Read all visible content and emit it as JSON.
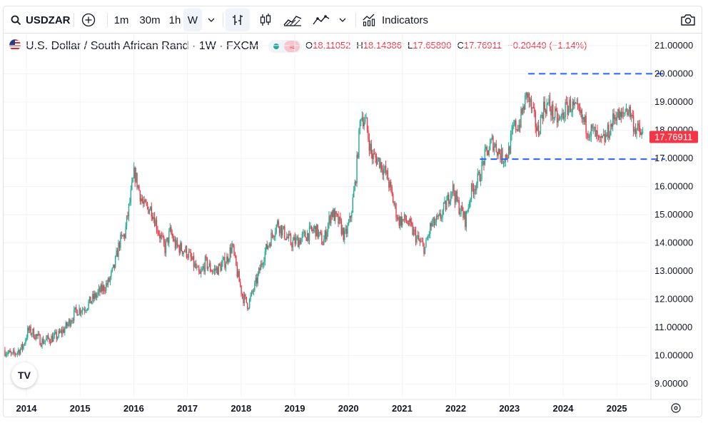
{
  "toolbar": {
    "symbol": "USDZAR",
    "intervals": [
      "1m",
      "30m",
      "1h",
      "W"
    ],
    "active_interval": "W",
    "indicators_label": "Indicators"
  },
  "legend": {
    "title": "U.S. Dollar / South African Rand · 1W · FXCM",
    "open_key": "O",
    "open": "18.11052",
    "high_key": "H",
    "high": "18.14386",
    "low_key": "L",
    "low": "17.65890",
    "close_key": "C",
    "close": "17.76911",
    "change": "−0.20449 (−1.14%)"
  },
  "price_tag": "17.76911",
  "logo_text": "TV",
  "colors": {
    "up": "#22ab94",
    "down": "#f23645",
    "line": "#2962ff",
    "tag": "#f23645"
  },
  "chart_data": {
    "type": "candlestick",
    "title": "U.S. Dollar / South African Rand · 1W · FXCM",
    "x_tick_labels": [
      "2014",
      "2015",
      "2016",
      "2017",
      "2018",
      "2019",
      "2020",
      "2021",
      "2022",
      "2023",
      "2024",
      "2025"
    ],
    "y_tick_labels": [
      "9.00000",
      "10.00000",
      "11.00000",
      "12.00000",
      "13.00000",
      "14.00000",
      "15.00000",
      "16.00000",
      "17.00000",
      "18.00000",
      "19.00000",
      "20.00000",
      "21.00000"
    ],
    "ylim": [
      8.55,
      21.4
    ],
    "xlim": [
      2013.6,
      2025.9
    ],
    "grid": true,
    "last_price": 17.76911,
    "series": [
      {
        "values": [
          [
            2013.6,
            10.2
          ],
          [
            2013.75,
            10.0
          ],
          [
            2013.95,
            10.3
          ],
          [
            2014.05,
            10.9
          ],
          [
            2014.15,
            10.8
          ],
          [
            2014.3,
            10.5
          ],
          [
            2014.45,
            10.6
          ],
          [
            2014.6,
            10.7
          ],
          [
            2014.75,
            11.0
          ],
          [
            2014.95,
            11.6
          ],
          [
            2015.1,
            11.7
          ],
          [
            2015.25,
            12.0
          ],
          [
            2015.4,
            12.3
          ],
          [
            2015.55,
            12.6
          ],
          [
            2015.65,
            13.1
          ],
          [
            2015.75,
            14.0
          ],
          [
            2015.85,
            14.3
          ],
          [
            2015.95,
            15.5
          ],
          [
            2016.03,
            16.5
          ],
          [
            2016.1,
            16.0
          ],
          [
            2016.2,
            15.3
          ],
          [
            2016.35,
            15.2
          ],
          [
            2016.5,
            14.3
          ],
          [
            2016.6,
            13.8
          ],
          [
            2016.7,
            14.4
          ],
          [
            2016.8,
            13.9
          ],
          [
            2016.9,
            13.8
          ],
          [
            2017.0,
            13.7
          ],
          [
            2017.15,
            13.2
          ],
          [
            2017.25,
            12.8
          ],
          [
            2017.35,
            13.3
          ],
          [
            2017.5,
            13.0
          ],
          [
            2017.6,
            13.1
          ],
          [
            2017.75,
            13.4
          ],
          [
            2017.85,
            13.9
          ],
          [
            2017.95,
            12.9
          ],
          [
            2018.05,
            12.1
          ],
          [
            2018.15,
            11.8
          ],
          [
            2018.3,
            12.6
          ],
          [
            2018.45,
            13.6
          ],
          [
            2018.6,
            14.3
          ],
          [
            2018.7,
            14.7
          ],
          [
            2018.8,
            14.4
          ],
          [
            2018.95,
            14.0
          ],
          [
            2019.1,
            14.1
          ],
          [
            2019.25,
            14.3
          ],
          [
            2019.4,
            14.5
          ],
          [
            2019.55,
            14.0
          ],
          [
            2019.7,
            15.1
          ],
          [
            2019.85,
            14.7
          ],
          [
            2019.95,
            14.2
          ],
          [
            2020.05,
            14.8
          ],
          [
            2020.15,
            16.2
          ],
          [
            2020.25,
            18.6
          ],
          [
            2020.35,
            18.2
          ],
          [
            2020.45,
            17.1
          ],
          [
            2020.6,
            16.9
          ],
          [
            2020.75,
            16.3
          ],
          [
            2020.85,
            15.5
          ],
          [
            2020.95,
            14.8
          ],
          [
            2021.1,
            14.8
          ],
          [
            2021.25,
            14.3
          ],
          [
            2021.35,
            14.0
          ],
          [
            2021.45,
            13.8
          ],
          [
            2021.55,
            14.6
          ],
          [
            2021.7,
            14.8
          ],
          [
            2021.85,
            15.4
          ],
          [
            2021.95,
            16.0
          ],
          [
            2022.05,
            15.4
          ],
          [
            2022.2,
            14.8
          ],
          [
            2022.3,
            15.8
          ],
          [
            2022.45,
            16.3
          ],
          [
            2022.55,
            17.0
          ],
          [
            2022.7,
            17.6
          ],
          [
            2022.8,
            17.3
          ],
          [
            2022.9,
            17.0
          ],
          [
            2023.0,
            17.2
          ],
          [
            2023.1,
            18.1
          ],
          [
            2023.2,
            18.2
          ],
          [
            2023.35,
            19.3
          ],
          [
            2023.45,
            18.6
          ],
          [
            2023.55,
            17.9
          ],
          [
            2023.65,
            18.8
          ],
          [
            2023.75,
            18.9
          ],
          [
            2023.85,
            18.5
          ],
          [
            2023.95,
            18.3
          ],
          [
            2024.05,
            18.7
          ],
          [
            2024.15,
            18.9
          ],
          [
            2024.3,
            18.6
          ],
          [
            2024.4,
            18.3
          ],
          [
            2024.5,
            18.0
          ],
          [
            2024.6,
            17.9
          ],
          [
            2024.7,
            17.5
          ],
          [
            2024.8,
            17.7
          ],
          [
            2024.9,
            18.1
          ],
          [
            2025.0,
            18.6
          ],
          [
            2025.1,
            18.4
          ],
          [
            2025.2,
            18.8
          ],
          [
            2025.28,
            18.6
          ],
          [
            2025.35,
            18.1
          ],
          [
            2025.45,
            17.9
          ],
          [
            2025.5,
            17.8
          ]
        ]
      }
    ],
    "annotations": [
      {
        "type": "dashed-line",
        "y": 20.0,
        "x_start": 2023.35,
        "x_end": 2025.9
      },
      {
        "type": "dashed-line",
        "y": 16.97,
        "x_start": 2022.45,
        "x_end": 2025.9
      }
    ]
  }
}
